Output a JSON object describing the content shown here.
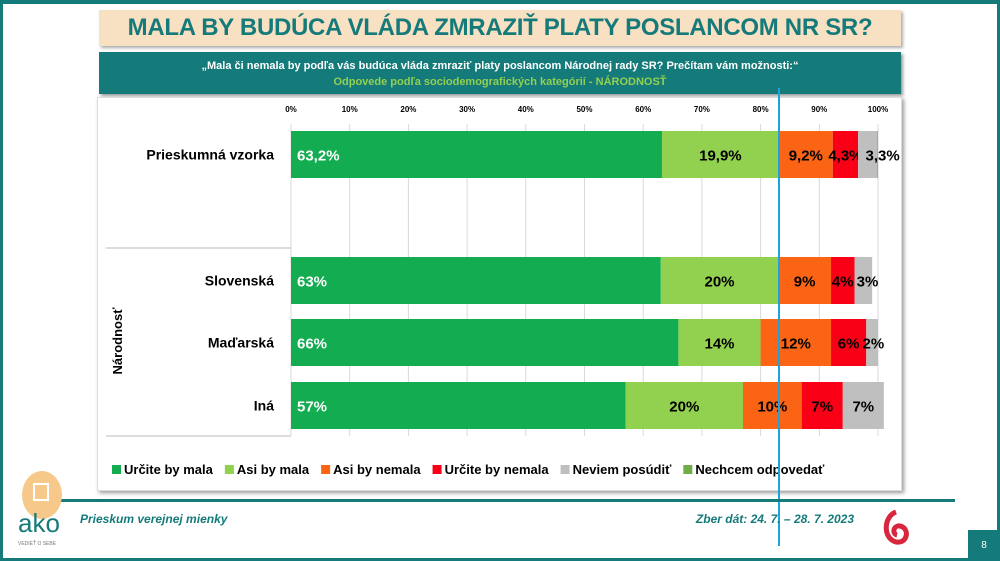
{
  "title": "MALA BY BUDÚCA VLÁDA ZMRAZIŤ PLATY POSLANCOM NR SR?",
  "question": "„Mala či nemala by podľa vás budúca vláda zmraziť platy poslancom Národnej rady SR? Prečítam vám možnosti:“",
  "subtitle": "Odpovede podľa sociodemografických kategórií - NÁRODNOSŤ",
  "chart_data": {
    "type": "bar",
    "orientation": "horizontal",
    "stacked": true,
    "xlim": [
      0,
      100
    ],
    "x_ticks": [
      "0%",
      "10%",
      "20%",
      "30%",
      "40%",
      "50%",
      "60%",
      "70%",
      "80%",
      "90%",
      "100%"
    ],
    "grid": true,
    "legend_position": "bottom",
    "group_label": "Národnosť",
    "categories": [
      "Prieskumná vzorka",
      "Slovenská",
      "Maďarská",
      "Iná"
    ],
    "series": [
      {
        "name": "Určite by mala",
        "color": "#13ac50",
        "values": [
          63.2,
          63,
          66,
          57
        ],
        "labels": [
          "63,2%",
          "63%",
          "66%",
          "57%"
        ]
      },
      {
        "name": "Asi by mala",
        "color": "#92d050",
        "values": [
          19.9,
          20,
          14,
          20
        ],
        "labels": [
          "19,9%",
          "20%",
          "14%",
          "20%"
        ]
      },
      {
        "name": "Asi by nemala",
        "color": "#fa6414",
        "values": [
          9.2,
          9,
          12,
          10
        ],
        "labels": [
          "9,2%",
          "9%",
          "12%",
          "10%"
        ]
      },
      {
        "name": "Určite by nemala",
        "color": "#f90016",
        "values": [
          4.3,
          4,
          6,
          7
        ],
        "labels": [
          "4,3%",
          "4%",
          "6%",
          "7%"
        ]
      },
      {
        "name": "Neviem posúdiť",
        "color": "#bfbfbf",
        "values": [
          3.3,
          3,
          2,
          7
        ],
        "labels": [
          "3,3%",
          "3%",
          "2%",
          "7%"
        ]
      },
      {
        "name": "Nechcem odpovedať",
        "color": "#70ad47",
        "values": [
          0.1,
          0,
          0,
          0
        ],
        "labels": [
          "",
          "",
          "",
          ""
        ]
      }
    ]
  },
  "footer": {
    "left": "Prieskum verejnej mienky",
    "right": "Zber dát: 24. 7. – 28. 7. 2023",
    "page": "8",
    "logo_text": "ako",
    "logo_tagline": "VEDIEŤ O SEBE"
  }
}
